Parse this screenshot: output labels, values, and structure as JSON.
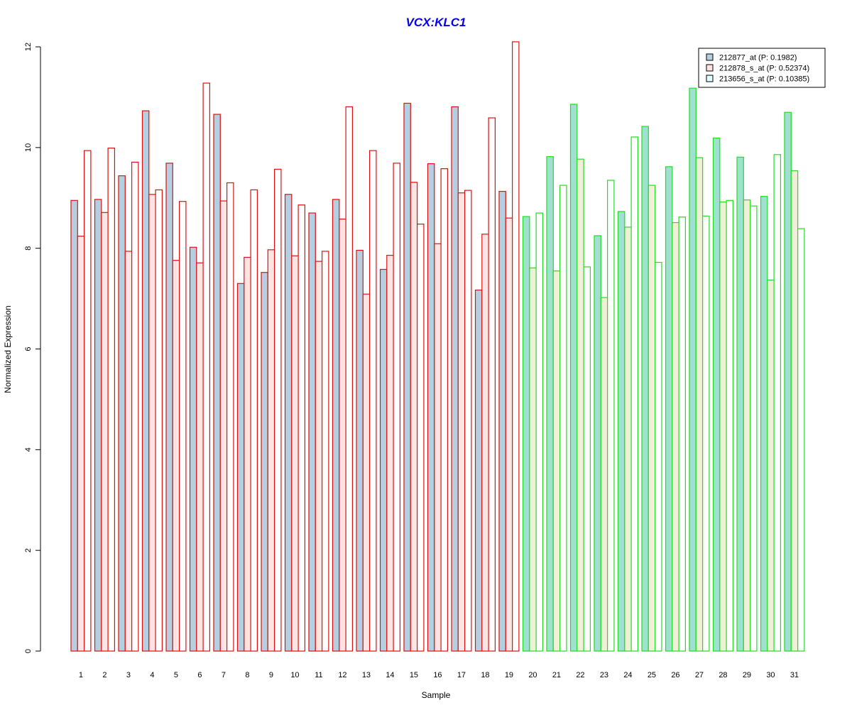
{
  "chart_data": {
    "type": "bar",
    "title": "VCX:KLC1",
    "xlabel": "Sample",
    "ylabel": "Normalized Expression",
    "ylim": [
      0,
      12
    ],
    "yticks": [
      0,
      2,
      4,
      6,
      8,
      10,
      12
    ],
    "grid": false,
    "legend_position": "top-right",
    "categories": [
      "1",
      "2",
      "3",
      "4",
      "5",
      "6",
      "7",
      "8",
      "9",
      "10",
      "11",
      "12",
      "13",
      "14",
      "15",
      "16",
      "17",
      "18",
      "19",
      "20",
      "21",
      "22",
      "23",
      "24",
      "25",
      "26",
      "27",
      "28",
      "29",
      "30",
      "31"
    ],
    "series": [
      {
        "name": "212877_at (P: 0.1982)",
        "fill": "#b4cfe0",
        "values": [
          8.95,
          8.97,
          9.44,
          10.73,
          9.69,
          8.02,
          10.66,
          7.3,
          7.52,
          9.07,
          8.7,
          8.97,
          7.96,
          7.58,
          10.88,
          9.68,
          10.81,
          7.17,
          9.13,
          8.63,
          9.82,
          10.86,
          8.25,
          8.73,
          10.42,
          9.62,
          11.18,
          10.19,
          9.81,
          9.03,
          10.7
        ]
      },
      {
        "name": "212878_s_at (P: 0.52374)",
        "fill": "#ffe4e1",
        "values": [
          8.24,
          8.71,
          7.94,
          9.07,
          7.76,
          7.71,
          8.94,
          7.82,
          7.97,
          7.85,
          7.74,
          8.58,
          7.09,
          7.86,
          9.31,
          8.09,
          9.1,
          8.28,
          8.6,
          7.61,
          7.55,
          9.77,
          7.02,
          8.42,
          9.25,
          8.51,
          9.8,
          8.92,
          8.96,
          7.37,
          9.54
        ]
      },
      {
        "name": "213656_s_at (P: 0.10385)",
        "fill": "#e0ffff",
        "values": [
          9.94,
          9.99,
          9.71,
          9.16,
          8.93,
          11.28,
          9.3,
          9.16,
          9.57,
          8.86,
          7.94,
          10.81,
          9.94,
          9.69,
          8.48,
          9.58,
          9.15,
          10.59,
          12.1,
          8.7,
          9.25,
          7.63,
          9.35,
          10.21,
          7.72,
          8.62,
          8.64,
          8.95,
          8.84,
          9.86,
          8.39
        ]
      }
    ],
    "group_colors": {
      "samples_1_to_19": {
        "border": "#dd1111",
        "fills": [
          "#b4cfe0",
          "#ffe4e1",
          "#ffffff"
        ]
      },
      "samples_20_to_31": {
        "border": "#22dd22",
        "fills": [
          "#9fe0d0",
          "#f0efd8",
          "#ffffff"
        ]
      }
    },
    "legend_swatch_border": "#000000"
  }
}
